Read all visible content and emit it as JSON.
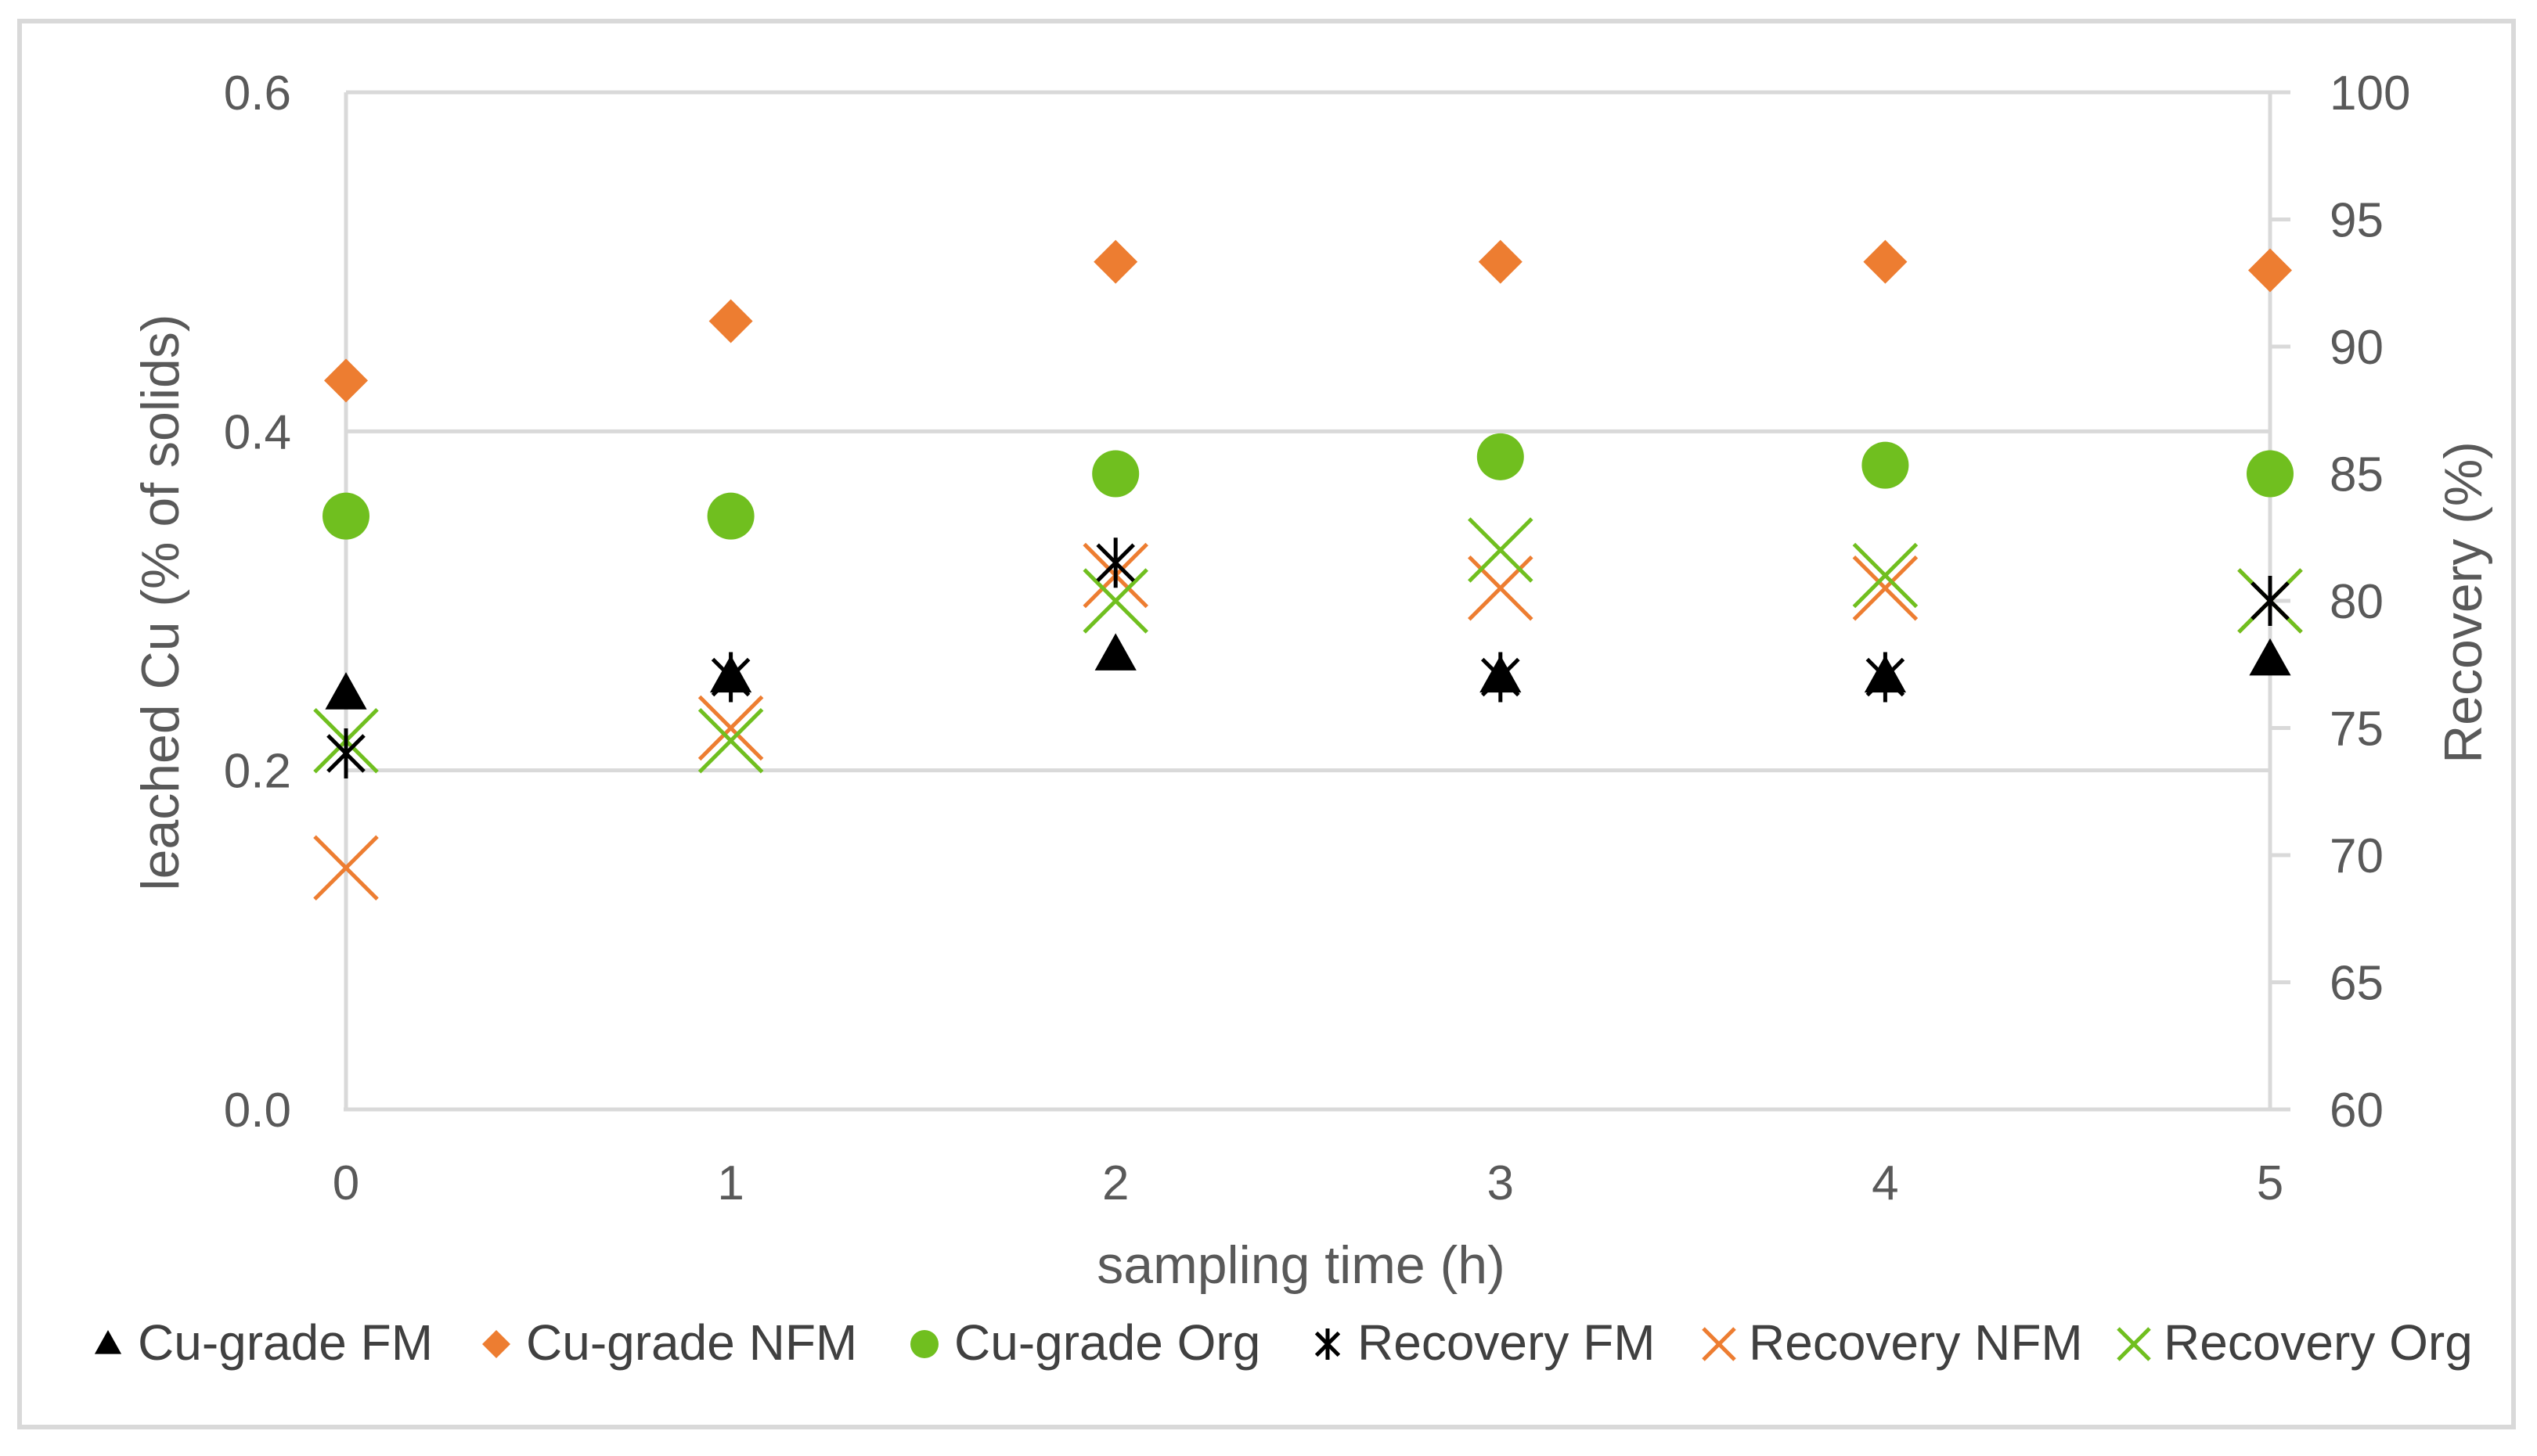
{
  "chart_data": {
    "type": "scatter",
    "title": "",
    "xlabel": "sampling time (h)",
    "ylabel_left": "leached Cu (% of solids)",
    "ylabel_right": "Recovery (%)",
    "x_ticks": [
      "0",
      "1",
      "2",
      "3",
      "4",
      "5"
    ],
    "y_left_ticks": [
      "0.0",
      "0.2",
      "0.4",
      "0.6"
    ],
    "y_right_ticks": [
      "60",
      "65",
      "70",
      "75",
      "80",
      "85",
      "90",
      "95",
      "100"
    ],
    "xlim": [
      0,
      5
    ],
    "ylim_left": [
      0,
      0.6
    ],
    "ylim_right": [
      60,
      100
    ],
    "grid": "horizontal, left axis major",
    "legend_position": "bottom",
    "x": [
      0,
      1,
      2,
      3,
      4,
      5
    ],
    "series": [
      {
        "name": "Cu-grade FM",
        "axis": "left",
        "marker": "triangle",
        "color": "#000000",
        "values": [
          0.245,
          0.255,
          0.268,
          0.255,
          0.255,
          0.265
        ]
      },
      {
        "name": "Cu-grade NFM",
        "axis": "left",
        "marker": "diamond",
        "color": "#ED7D31",
        "values": [
          0.43,
          0.465,
          0.5,
          0.5,
          0.5,
          0.495
        ]
      },
      {
        "name": "Cu-grade Org",
        "axis": "left",
        "marker": "circle",
        "color": "#70BF1F",
        "values": [
          0.35,
          0.35,
          0.375,
          0.385,
          0.38,
          0.375
        ]
      },
      {
        "name": "Recovery FM",
        "axis": "right",
        "marker": "star",
        "color": "#000000",
        "values": [
          74,
          77,
          81.5,
          77,
          77,
          80
        ]
      },
      {
        "name": "Recovery NFM",
        "axis": "right",
        "marker": "x",
        "color": "#ED7D31",
        "values": [
          69.5,
          75,
          81,
          80.5,
          80.5,
          80
        ]
      },
      {
        "name": "Recovery Org",
        "axis": "right",
        "marker": "x",
        "color": "#70BF1F",
        "values": [
          74.5,
          74.5,
          80,
          82,
          81,
          80
        ]
      }
    ]
  }
}
